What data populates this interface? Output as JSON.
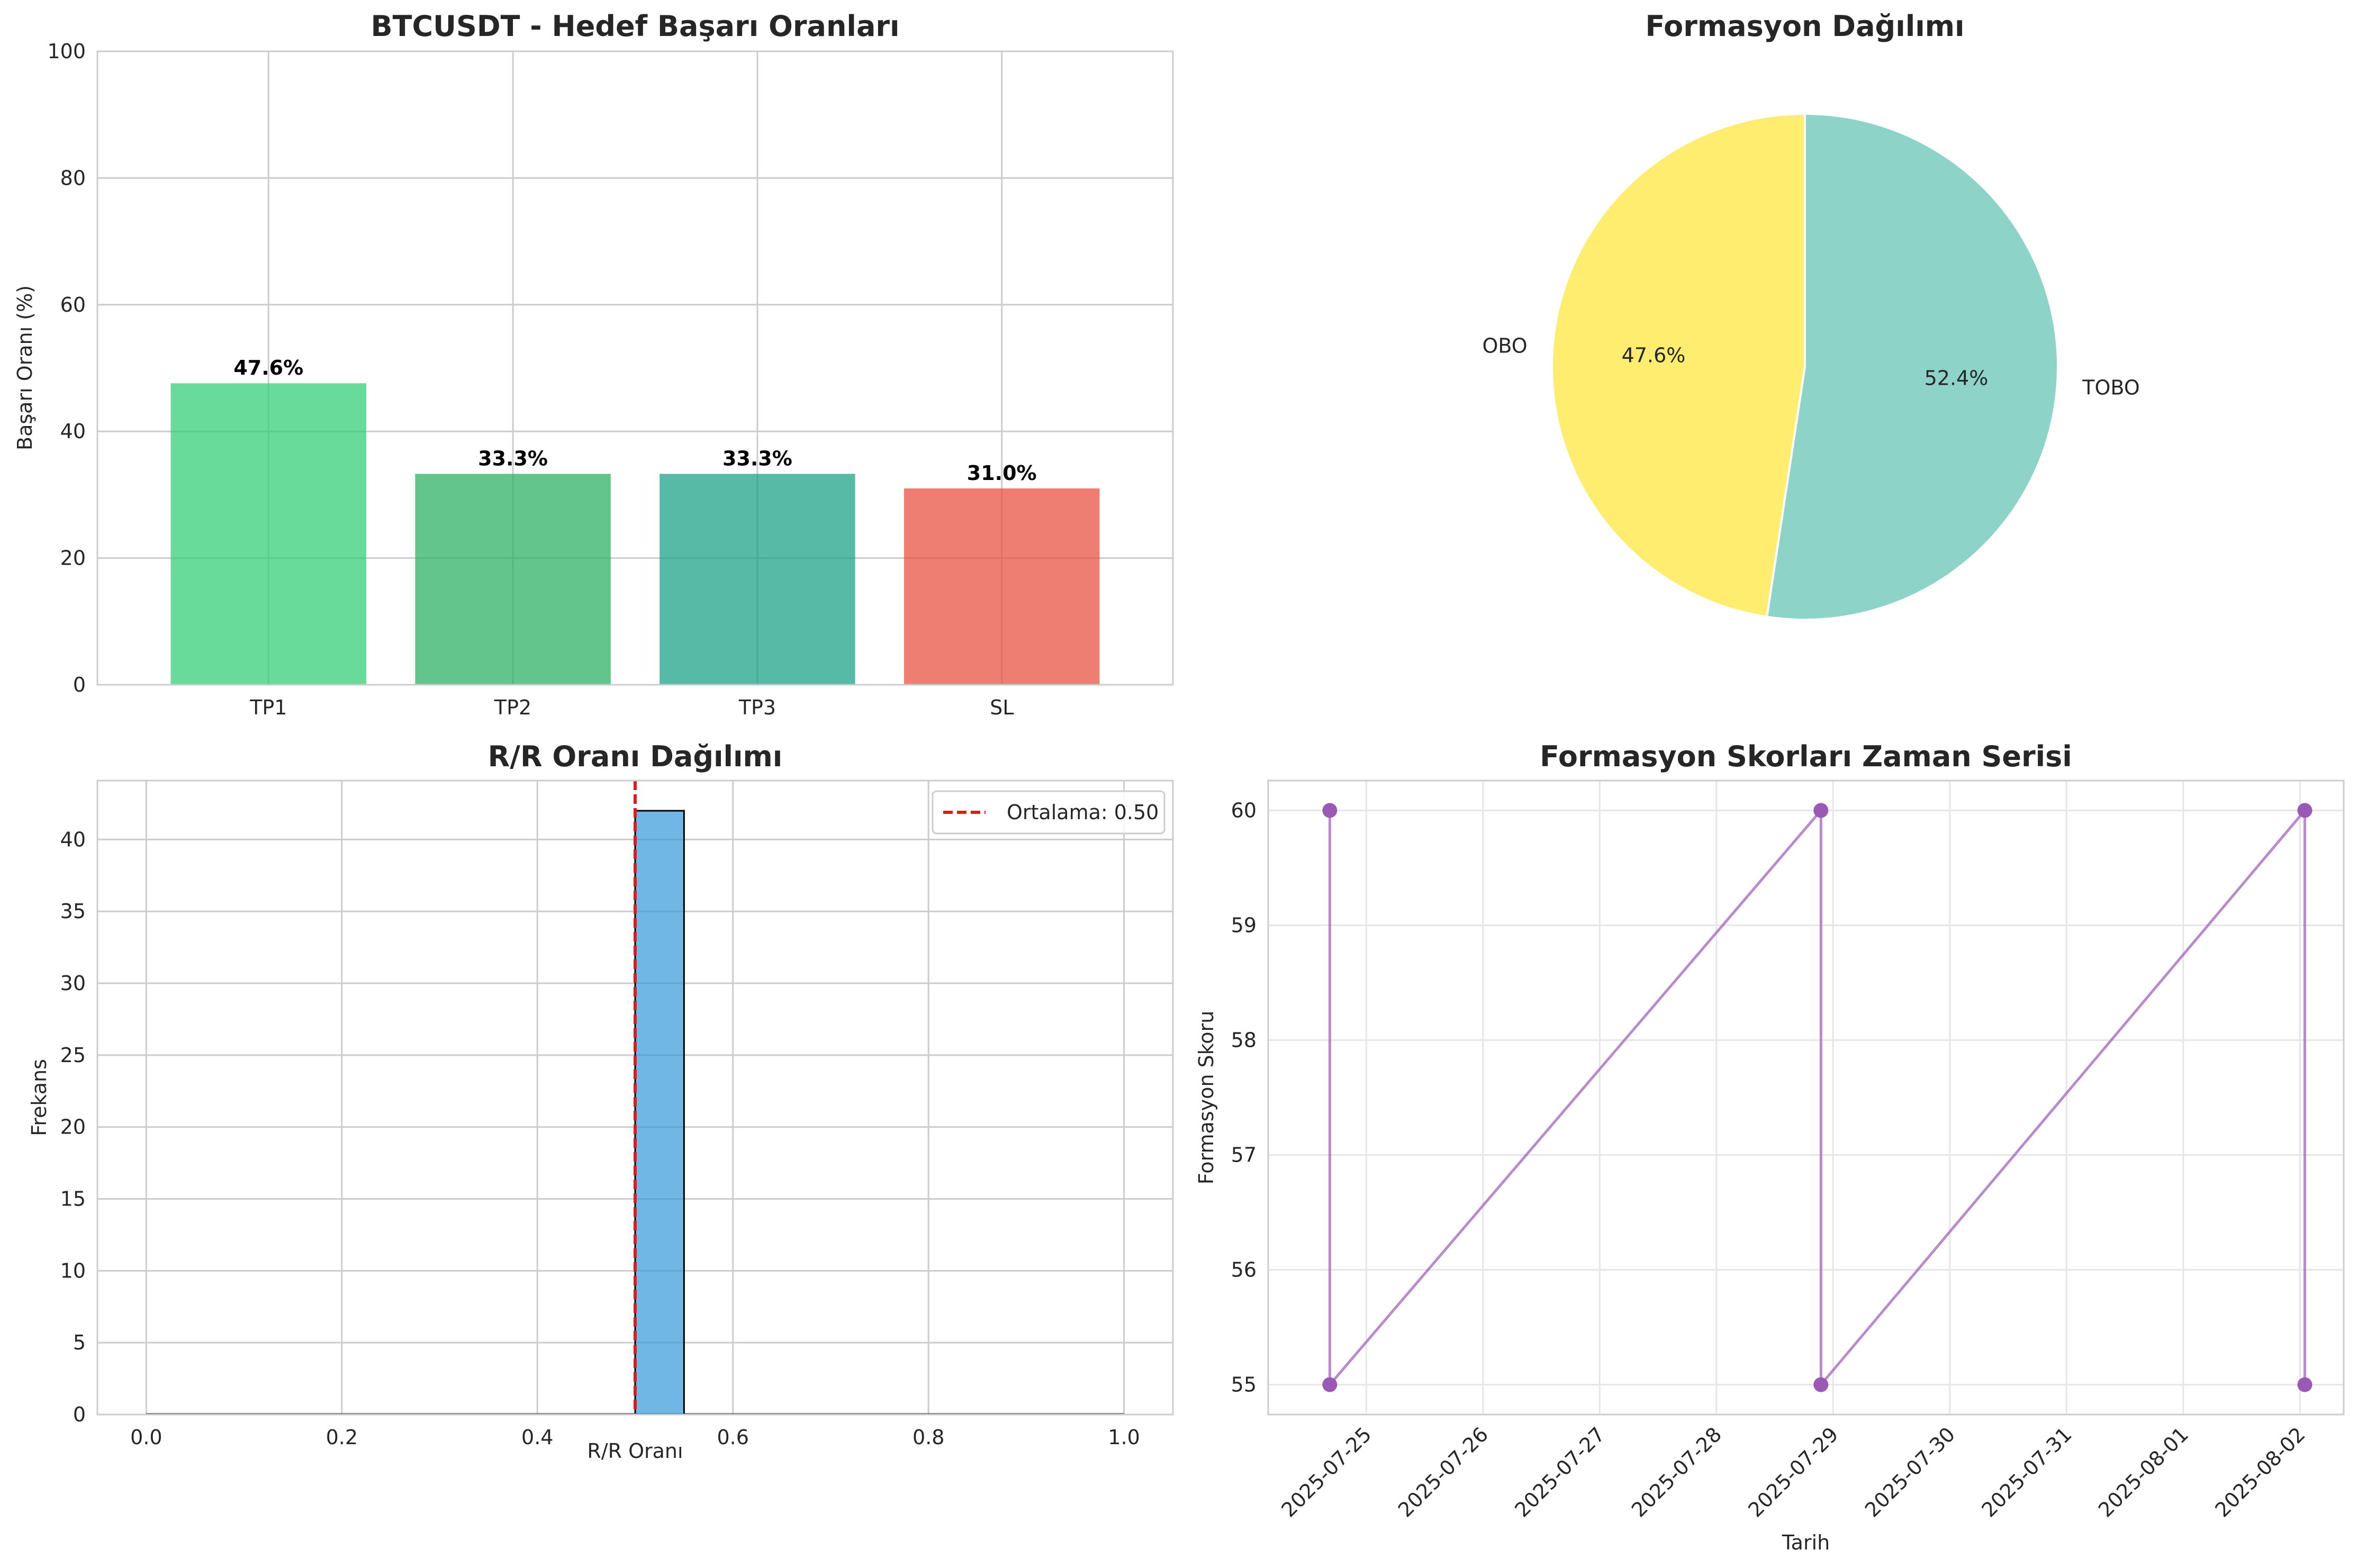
{
  "chart_data": [
    {
      "type": "bar",
      "title": "BTCUSDT - Hedef Başarı Oranları",
      "xlabel": "",
      "ylabel": "Başarı Oranı (%)",
      "ylim": [
        0,
        100
      ],
      "yticks": [
        "0",
        "20",
        "40",
        "60",
        "80",
        "100"
      ],
      "categories": [
        "TP1",
        "TP2",
        "TP3",
        "SL"
      ],
      "values": [
        47.6,
        33.3,
        33.3,
        31.0
      ],
      "value_labels": [
        "47.6%",
        "33.3%",
        "33.3%",
        "31.0%"
      ],
      "colors": [
        "#2ecc71",
        "#27ae60",
        "#16a085",
        "#e74c3c"
      ],
      "grid": true
    },
    {
      "type": "pie",
      "title": "Formasyon Dağılımı",
      "labels": [
        "OBO",
        "TOBO"
      ],
      "values": [
        47.6,
        52.4
      ],
      "pct_labels": [
        "47.6%",
        "52.4%"
      ],
      "colors": [
        "#ffed6f",
        "#8dd3c7"
      ]
    },
    {
      "type": "bar",
      "subtype": "histogram",
      "title": "R/R Oranı Dağılımı",
      "xlabel": "R/R Oranı",
      "ylabel": "Frekans",
      "xlim": [
        -0.05,
        1.05
      ],
      "ylim": [
        0,
        44.1
      ],
      "xticks": [
        "0.0",
        "0.2",
        "0.4",
        "0.6",
        "0.8",
        "1.0"
      ],
      "yticks": [
        "0",
        "5",
        "10",
        "15",
        "20",
        "25",
        "30",
        "35",
        "40"
      ],
      "bins": [
        {
          "x0": 0.5,
          "x1": 0.55,
          "count": 42
        }
      ],
      "mean_value": 0.5,
      "legend": [
        "Ortalama: 0.50"
      ],
      "legend_position": "top-right",
      "bar_color": "#3498db",
      "mean_color": "#e31a1c",
      "grid": true
    },
    {
      "type": "line",
      "title": "Formasyon Skorları Zaman Serisi",
      "xlabel": "Tarih",
      "ylabel": "Formasyon Skoru",
      "ylim": [
        54.74,
        60.26
      ],
      "yticks": [
        "55",
        "56",
        "57",
        "58",
        "59",
        "60"
      ],
      "xlim": [
        "2025-07-24 03:50",
        "2025-08-02 09:00"
      ],
      "xticks": [
        "2025-07-25",
        "2025-07-26",
        "2025-07-27",
        "2025-07-28",
        "2025-07-29",
        "2025-07-30",
        "2025-07-31",
        "2025-08-01",
        "2025-08-02"
      ],
      "x": [
        "2025-07-24 16:30",
        "2025-07-24 16:30",
        "2025-07-28 21:30",
        "2025-07-28 21:30",
        "2025-08-02 01:00",
        "2025-08-02 01:00"
      ],
      "y": [
        60,
        55,
        60,
        55,
        60,
        55
      ],
      "color": "#9b59b6",
      "grid": true
    }
  ]
}
